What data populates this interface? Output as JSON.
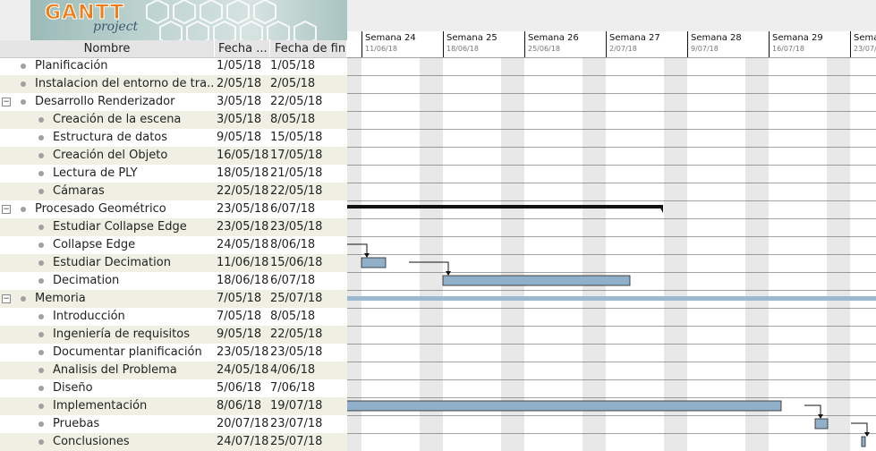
{
  "app": {
    "logo_title": "GANTT",
    "logo_subtitle": "project"
  },
  "columns": {
    "name": "Nombre",
    "start": "Fecha ...",
    "end": "Fecha de fin"
  },
  "weeks": [
    {
      "label": "Semana 24",
      "date": "11/06/18"
    },
    {
      "label": "Semana 25",
      "date": "18/06/18"
    },
    {
      "label": "Semana 26",
      "date": "25/06/18"
    },
    {
      "label": "Semana 27",
      "date": "2/07/18"
    },
    {
      "label": "Semana 28",
      "date": "9/07/18"
    },
    {
      "label": "Semana 29",
      "date": "16/07/18"
    },
    {
      "label": "Sema",
      "date": "23/07/"
    }
  ],
  "tasks": [
    {
      "name": "Planificación",
      "start": "1/05/18",
      "end": "1/05/18",
      "level": 0,
      "group": false
    },
    {
      "name": "Instalacion del entorno de tra...",
      "start": "2/05/18",
      "end": "2/05/18",
      "level": 0,
      "group": false
    },
    {
      "name": "Desarrollo Renderizador",
      "start": "3/05/18",
      "end": "22/05/18",
      "level": 0,
      "group": true
    },
    {
      "name": "Creación de la escena",
      "start": "3/05/18",
      "end": "8/05/18",
      "level": 1,
      "group": false
    },
    {
      "name": "Estructura de datos",
      "start": "9/05/18",
      "end": "15/05/18",
      "level": 1,
      "group": false
    },
    {
      "name": "Creación del Objeto",
      "start": "16/05/18",
      "end": "17/05/18",
      "level": 1,
      "group": false
    },
    {
      "name": "Lectura de PLY",
      "start": "18/05/18",
      "end": "21/05/18",
      "level": 1,
      "group": false
    },
    {
      "name": "Cámaras",
      "start": "22/05/18",
      "end": "22/05/18",
      "level": 1,
      "group": false
    },
    {
      "name": "Procesado Geométrico",
      "start": "23/05/18",
      "end": "6/07/18",
      "level": 0,
      "group": true
    },
    {
      "name": "Estudiar Collapse Edge",
      "start": "23/05/18",
      "end": "23/05/18",
      "level": 1,
      "group": false
    },
    {
      "name": "Collapse Edge",
      "start": "24/05/18",
      "end": "8/06/18",
      "level": 1,
      "group": false
    },
    {
      "name": "Estudiar Decimation",
      "start": "11/06/18",
      "end": "15/06/18",
      "level": 1,
      "group": false
    },
    {
      "name": "Decimation",
      "start": "18/06/18",
      "end": "6/07/18",
      "level": 1,
      "group": false
    },
    {
      "name": "Memoria",
      "start": "7/05/18",
      "end": "25/07/18",
      "level": 0,
      "group": true
    },
    {
      "name": "Introducción",
      "start": "7/05/18",
      "end": "8/05/18",
      "level": 1,
      "group": false
    },
    {
      "name": "Ingeniería de requisitos",
      "start": "9/05/18",
      "end": "22/05/18",
      "level": 1,
      "group": false
    },
    {
      "name": "Documentar planificación",
      "start": "23/05/18",
      "end": "23/05/18",
      "level": 1,
      "group": false
    },
    {
      "name": "Analisis del Problema",
      "start": "24/05/18",
      "end": "4/06/18",
      "level": 1,
      "group": false
    },
    {
      "name": "Diseño",
      "start": "5/06/18",
      "end": "7/06/18",
      "level": 1,
      "group": false
    },
    {
      "name": "Implementación",
      "start": "8/06/18",
      "end": "19/07/18",
      "level": 1,
      "group": false
    },
    {
      "name": "Pruebas",
      "start": "20/07/18",
      "end": "23/07/18",
      "level": 1,
      "group": false
    },
    {
      "name": "Conclusiones",
      "start": "24/07/18",
      "end": "25/07/18",
      "level": 1,
      "group": false
    }
  ],
  "colors": {
    "task_bar": "#8fb0c8",
    "group_bar": "#111111",
    "memoria_bar": "#9ab8cf",
    "alt_row": "#eff0e3",
    "weekend": "#e8e8e8",
    "grid_line": "#4a4a4a"
  }
}
